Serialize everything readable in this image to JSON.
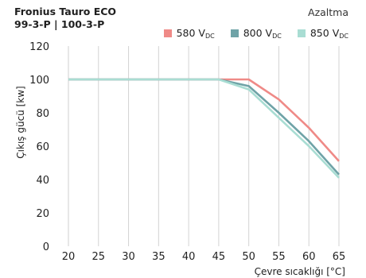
{
  "header": {
    "title_line1": "Fronius Tauro ECO",
    "title_line2": "99-3-P | 100-3-P",
    "mode": "Azaltma"
  },
  "legend": [
    {
      "label": "580 V",
      "sub": "DC",
      "color": "#ef8a87"
    },
    {
      "label": "800 V",
      "sub": "DC",
      "color": "#6fa3a7"
    },
    {
      "label": "850 V",
      "sub": "DC",
      "color": "#a9ddd3"
    }
  ],
  "chart_data": {
    "type": "line",
    "xlabel": "Çevre sıcaklığı [°C]",
    "ylabel": "Çıkış gücü [kw]",
    "xlim": [
      20,
      65
    ],
    "ylim": [
      0,
      120
    ],
    "xticks": [
      20,
      25,
      30,
      35,
      40,
      45,
      50,
      55,
      60,
      65
    ],
    "yticks": [
      0,
      20,
      40,
      60,
      80,
      100,
      120
    ],
    "grid": {
      "vertical": true,
      "horizontal": false
    },
    "series": [
      {
        "name": "580 VDC",
        "color": "#ef8a87",
        "x": [
          20,
          45,
          50,
          55,
          60,
          65
        ],
        "y": [
          100,
          100,
          100,
          88,
          71,
          51
        ]
      },
      {
        "name": "800 VDC",
        "color": "#6fa3a7",
        "x": [
          20,
          45,
          50,
          55,
          60,
          65
        ],
        "y": [
          100,
          100,
          96,
          80,
          63,
          43
        ]
      },
      {
        "name": "850 VDC",
        "color": "#a9ddd3",
        "x": [
          20,
          45,
          50,
          55,
          60,
          65
        ],
        "y": [
          100,
          100,
          94,
          77,
          60,
          41
        ]
      }
    ]
  }
}
